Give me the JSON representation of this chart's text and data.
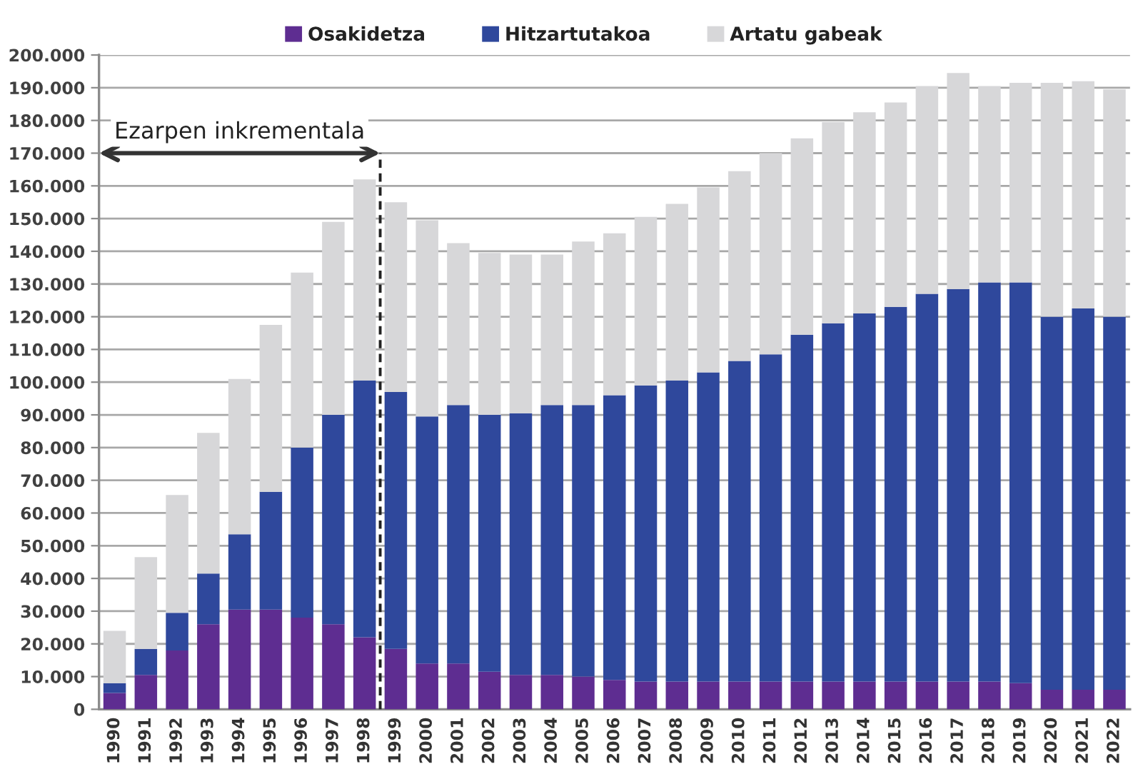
{
  "chart_data": {
    "type": "bar",
    "stacked": true,
    "x": [
      1990,
      1991,
      1992,
      1993,
      1994,
      1995,
      1996,
      1997,
      1998,
      1999,
      2000,
      2001,
      2002,
      2003,
      2004,
      2005,
      2006,
      2007,
      2008,
      2009,
      2010,
      2011,
      2012,
      2013,
      2014,
      2015,
      2016,
      2017,
      2018,
      2019,
      2020,
      2021,
      2022
    ],
    "series": [
      {
        "name": "Osakidetza",
        "color": "#5e2d91",
        "values": [
          5000,
          10500,
          18000,
          26000,
          30500,
          30500,
          28000,
          26000,
          22000,
          18500,
          14000,
          14000,
          11500,
          10500,
          10500,
          10000,
          9000,
          8500,
          8500,
          8500,
          8500,
          8500,
          8500,
          8500,
          8500,
          8500,
          8500,
          8500,
          8500,
          8000,
          6000,
          6000,
          6000
        ]
      },
      {
        "name": "Hitzartutakoa",
        "color": "#2f489c",
        "values": [
          3000,
          8000,
          11500,
          15500,
          23000,
          36000,
          52000,
          64000,
          78500,
          78500,
          75500,
          79000,
          78500,
          80000,
          82500,
          83000,
          87000,
          90500,
          92000,
          94500,
          98000,
          100000,
          106000,
          109500,
          112500,
          114500,
          118500,
          120000,
          122000,
          122500,
          114000,
          116500,
          114000
        ]
      },
      {
        "name": "Artatu gabeak",
        "color": "#d7d7d9",
        "values": [
          16000,
          28000,
          36000,
          43000,
          47500,
          51000,
          53500,
          59000,
          61500,
          58000,
          60000,
          49500,
          49500,
          48500,
          46000,
          50000,
          49500,
          51500,
          54000,
          56500,
          58000,
          61500,
          60000,
          61500,
          61500,
          62500,
          63500,
          66000,
          60000,
          61000,
          71500,
          69500,
          69500
        ]
      }
    ],
    "xlim": [
      1989.5,
      2022.5
    ],
    "xticks": [
      1990,
      1991,
      1992,
      1993,
      1994,
      1995,
      1996,
      1997,
      1998,
      1999,
      2000,
      2001,
      2002,
      2003,
      2004,
      2005,
      2006,
      2007,
      2008,
      2009,
      2010,
      2011,
      2012,
      2013,
      2014,
      2015,
      2016,
      2017,
      2018,
      2019,
      2020,
      2021,
      2022
    ],
    "ylim": [
      0,
      200000
    ],
    "yticks": [
      0,
      {
        "value": 10000,
        "label": "10.000"
      },
      {
        "value": 20000,
        "label": "20.000"
      },
      {
        "value": 30000,
        "label": "30.000"
      },
      {
        "value": 40000,
        "label": "40.000"
      },
      {
        "value": 50000,
        "label": "50.000"
      },
      {
        "value": 60000,
        "label": "60.000"
      },
      {
        "value": 70000,
        "label": "70.000"
      },
      {
        "value": 80000,
        "label": "80.000"
      },
      {
        "value": 90000,
        "label": "90.000"
      },
      {
        "value": 100000,
        "label": "100.000"
      },
      {
        "value": 110000,
        "label": "110.000"
      },
      {
        "value": 120000,
        "label": "120.000"
      },
      {
        "value": 130000,
        "label": "130.000"
      },
      {
        "value": 140000,
        "label": "140.000"
      },
      {
        "value": 150000,
        "label": "150.000"
      },
      {
        "value": 160000,
        "label": "160.000"
      },
      {
        "value": 170000,
        "label": "170.000"
      },
      {
        "value": 180000,
        "label": "180.000"
      },
      {
        "value": 190000,
        "label": "190.000"
      },
      {
        "value": 200000,
        "label": "200.000"
      }
    ],
    "grid": "y",
    "legend": "top",
    "annotations": [
      "Ezarpen inkrementala"
    ],
    "ref_lines": [
      {
        "axis": "x",
        "value": 1998.5,
        "color": "#222222",
        "line_style": "dashed"
      }
    ]
  }
}
